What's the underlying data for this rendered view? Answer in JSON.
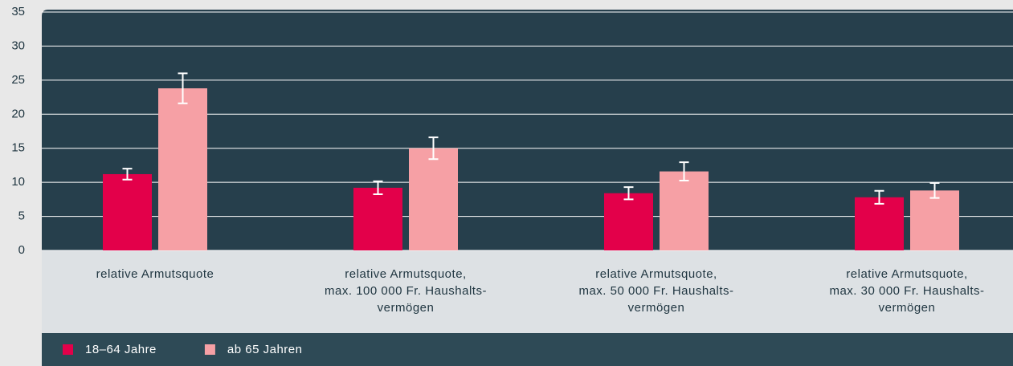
{
  "chart_data": {
    "type": "bar",
    "categories": [
      [
        "relative Armutsquote"
      ],
      [
        "relative Armutsquote,",
        "max. 100 000 Fr. Haushalts-",
        "vermögen"
      ],
      [
        "relative Armutsquote,",
        "max. 50 000 Fr. Haushalts-",
        "vermögen"
      ],
      [
        "relative Armutsquote,",
        "max. 30 000 Fr. Haushalts-",
        "vermögen"
      ]
    ],
    "series": [
      {
        "name": "18–64 Jahre",
        "color": "#e3004a",
        "values": [
          11.2,
          9.2,
          8.4,
          7.8
        ],
        "errors": [
          0.8,
          0.95,
          0.9,
          0.95
        ]
      },
      {
        "name": "ab 65 Jahren",
        "color": "#f6a0a5",
        "values": [
          23.8,
          15.0,
          11.6,
          8.8
        ],
        "errors": [
          2.2,
          1.6,
          1.35,
          1.1
        ]
      }
    ],
    "ylim": [
      0,
      35
    ],
    "yticks": [
      0,
      5,
      10,
      15,
      20,
      25,
      30,
      35
    ],
    "grid": true,
    "legend": "bottom-left"
  }
}
